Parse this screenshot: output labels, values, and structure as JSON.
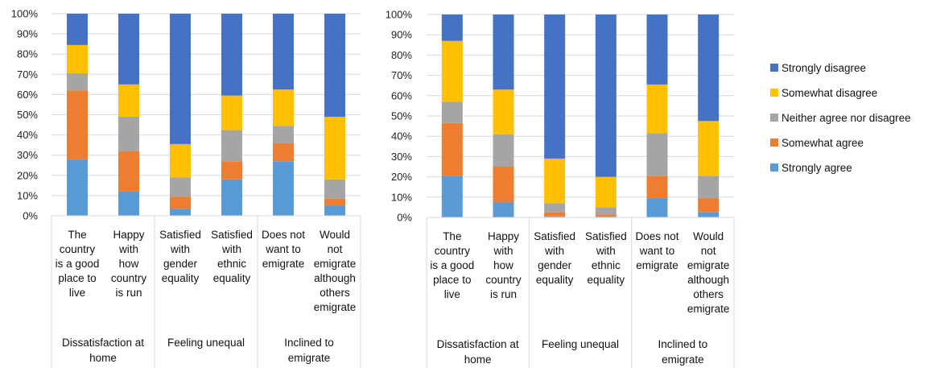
{
  "colors": {
    "Strongly agree": "#5B9BD5",
    "Somewhat agree": "#ED7D31",
    "Neither agree nor disagree": "#A5A5A5",
    "Somewhat disagree": "#FFC000",
    "Strongly disagree": "#4472C4"
  },
  "legend": {
    "items": [
      "Strongly disagree",
      "Somewhat disagree",
      "Neither agree nor disagree",
      "Somewhat agree",
      "Strongly agree"
    ]
  },
  "chart_data": [
    {
      "type": "bar",
      "stacked": true,
      "percent": true,
      "ylim": [
        0,
        100
      ],
      "yticks": [
        "0%",
        "10%",
        "20%",
        "30%",
        "40%",
        "50%",
        "60%",
        "70%",
        "80%",
        "90%",
        "100%"
      ],
      "categories": [
        [
          "The",
          "country",
          "is a good",
          "place to",
          "live"
        ],
        [
          "Happy",
          "with",
          "how",
          "country",
          "is run"
        ],
        [
          "Satisfied",
          "with",
          "gender",
          "equality"
        ],
        [
          "Satisfied",
          "with",
          "ethnic",
          "equality"
        ],
        [
          "Does not",
          "want to",
          "emigrate"
        ],
        [
          "Would",
          "not",
          "emigrate",
          "although",
          "others",
          "emigrate"
        ]
      ],
      "groups": [
        {
          "label": [
            "Dissatisfaction at",
            "home"
          ],
          "span": 2
        },
        {
          "label": [
            "Feeling unequal"
          ],
          "span": 2
        },
        {
          "label": [
            "Inclined to",
            "emigrate"
          ],
          "span": 2
        }
      ],
      "series": [
        {
          "name": "Strongly agree",
          "values": [
            28,
            12,
            3.5,
            18,
            27,
            5
          ]
        },
        {
          "name": "Somewhat agree",
          "values": [
            34,
            20,
            6,
            9,
            9,
            3.5
          ]
        },
        {
          "name": "Neither agree nor disagree",
          "values": [
            8.5,
            17,
            9.5,
            15.5,
            8.5,
            9.5
          ]
        },
        {
          "name": "Somewhat disagree",
          "values": [
            14,
            16,
            16.5,
            17,
            18,
            31
          ]
        },
        {
          "name": "Strongly disagree",
          "values": [
            15.5,
            35,
            64.5,
            40.5,
            37.5,
            51
          ]
        }
      ]
    },
    {
      "type": "bar",
      "stacked": true,
      "percent": true,
      "ylim": [
        0,
        100
      ],
      "yticks": [
        "0%",
        "10%",
        "20%",
        "30%",
        "40%",
        "50%",
        "60%",
        "70%",
        "80%",
        "90%",
        "100%"
      ],
      "categories": [
        [
          "The",
          "country",
          "is a good",
          "place to",
          "live"
        ],
        [
          "Happy",
          "with",
          "how",
          "country",
          "is run"
        ],
        [
          "Satisfied",
          "with",
          "gender",
          "equality"
        ],
        [
          "Satisfied",
          "with",
          "ethnic",
          "equality"
        ],
        [
          "Does not",
          "want to",
          "emigrate"
        ],
        [
          "Would",
          "not",
          "emigrate",
          "although",
          "others",
          "emigrate"
        ]
      ],
      "groups": [
        {
          "label": [
            "Dissatisfaction at",
            "home"
          ],
          "span": 2
        },
        {
          "label": [
            "Feeling unequal"
          ],
          "span": 2
        },
        {
          "label": [
            "Inclined to",
            "emigrate"
          ],
          "span": 2
        }
      ],
      "series": [
        {
          "name": "Strongly agree",
          "values": [
            20.5,
            7.5,
            0.5,
            0.5,
            9.5,
            2.5
          ]
        },
        {
          "name": "Somewhat agree",
          "values": [
            26,
            17.5,
            2,
            1,
            11,
            7
          ]
        },
        {
          "name": "Neither agree nor disagree",
          "values": [
            10.5,
            16,
            4.5,
            3.5,
            21,
            11
          ]
        },
        {
          "name": "Somewhat disagree",
          "values": [
            30,
            22,
            22,
            15,
            24,
            27
          ]
        },
        {
          "name": "Strongly disagree",
          "values": [
            13,
            37,
            71,
            80,
            34.5,
            52.5
          ]
        }
      ]
    }
  ]
}
